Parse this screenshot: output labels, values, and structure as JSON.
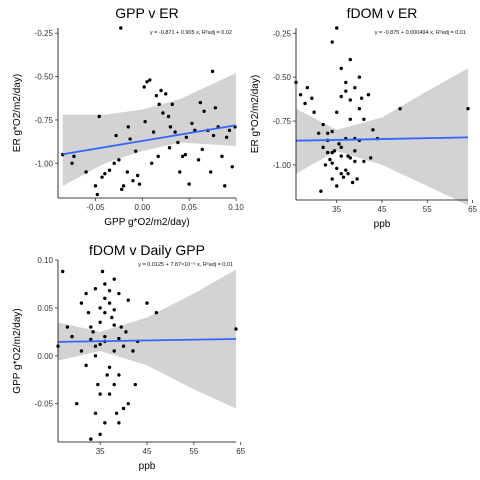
{
  "chart_data": [
    {
      "type": "scatter",
      "title": "GPP v ER",
      "xlabel": "GPP g*O2/m2/day)",
      "ylabel": "ER g*O2/m2/day)",
      "equation": "y = -0.871 + 0.905 x,  R²adj = 0.02",
      "xlim": [
        -0.09,
        0.1
      ],
      "ylim": [
        -1.2,
        -0.22
      ],
      "xticks": [
        -0.05,
        0.0,
        0.05,
        0.1
      ],
      "xtick_labels": [
        "-0.05",
        "0.00",
        "0.05",
        "0.10"
      ],
      "yticks": [
        -0.25,
        -0.5,
        -0.75,
        -1.0
      ],
      "ytick_labels": [
        "-0.25",
        "-0.50",
        "-0.75",
        "-1.00"
      ],
      "fit": {
        "intercept": -0.871,
        "slope": 0.905,
        "x_range": [
          -0.085,
          0.1
        ]
      },
      "band": {
        "x": [
          -0.085,
          -0.04,
          0.0,
          0.04,
          0.1
        ],
        "lower": [
          -1.13,
          -1.0,
          -0.93,
          -0.88,
          -0.9
        ],
        "upper": [
          -0.72,
          -0.72,
          -0.69,
          -0.63,
          -0.48
        ]
      },
      "points": [
        [
          -0.085,
          -0.95
        ],
        [
          -0.075,
          -1.0
        ],
        [
          -0.073,
          -0.96
        ],
        [
          -0.06,
          -1.05
        ],
        [
          -0.05,
          -1.13
        ],
        [
          -0.048,
          -1.18
        ],
        [
          -0.046,
          -0.73
        ],
        [
          -0.043,
          -1.08
        ],
        [
          -0.04,
          -1.06
        ],
        [
          -0.035,
          -1.04
        ],
        [
          -0.03,
          -1.0
        ],
        [
          -0.028,
          -0.84
        ],
        [
          -0.025,
          -0.98
        ],
        [
          -0.022,
          -1.15
        ],
        [
          -0.02,
          -1.13
        ],
        [
          -0.016,
          -1.05
        ],
        [
          -0.013,
          -0.86
        ],
        [
          -0.01,
          -1.1
        ],
        [
          -0.005,
          -1.07
        ],
        [
          -0.003,
          -1.12
        ],
        [
          -0.023,
          -0.22
        ],
        [
          -0.015,
          -0.79
        ],
        [
          0.002,
          -0.56
        ],
        [
          0.005,
          -0.53
        ],
        [
          0.008,
          -0.52
        ],
        [
          0.003,
          -0.76
        ],
        [
          0.012,
          -0.82
        ],
        [
          0.015,
          -0.61
        ],
        [
          0.018,
          -0.66
        ],
        [
          0.02,
          -0.58
        ],
        [
          0.022,
          -0.71
        ],
        [
          0.025,
          -0.6
        ],
        [
          0.028,
          -0.73
        ],
        [
          0.03,
          -0.79
        ],
        [
          0.032,
          -0.66
        ],
        [
          0.035,
          -0.82
        ],
        [
          0.038,
          -0.88
        ],
        [
          0.04,
          -1.05
        ],
        [
          0.043,
          -0.96
        ],
        [
          0.046,
          -0.95
        ],
        [
          0.05,
          -1.12
        ],
        [
          0.053,
          -0.77
        ],
        [
          0.056,
          -0.81
        ],
        [
          0.06,
          -0.98
        ],
        [
          0.062,
          -0.65
        ],
        [
          0.066,
          -0.7
        ],
        [
          0.07,
          -0.81
        ],
        [
          0.073,
          -1.05
        ],
        [
          0.076,
          -0.84
        ],
        [
          0.078,
          -0.68
        ],
        [
          0.081,
          -0.79
        ],
        [
          0.085,
          -0.96
        ],
        [
          0.088,
          -1.13
        ],
        [
          0.09,
          -0.85
        ],
        [
          0.093,
          -0.81
        ],
        [
          0.096,
          -1.02
        ],
        [
          0.099,
          -0.79
        ],
        [
          0.075,
          -0.47
        ],
        [
          0.029,
          -0.91
        ],
        [
          0.01,
          -1.0
        ],
        [
          -0.007,
          -0.93
        ],
        [
          0.017,
          -0.96
        ],
        [
          0.047,
          -0.85
        ],
        [
          0.064,
          -0.92
        ]
      ]
    },
    {
      "type": "scatter",
      "title": "fDOM  v ER",
      "xlabel": "ppb",
      "ylabel": "ER g*O2/m2/day)",
      "equation": "y = -0.875 + 0.000494 x,  R²adj = 0.01",
      "xlim": [
        26,
        64
      ],
      "ylim": [
        -1.2,
        -0.22
      ],
      "xticks": [
        35,
        45,
        55,
        65
      ],
      "xtick_labels": [
        "35",
        "45",
        "55",
        "65"
      ],
      "yticks": [
        -0.25,
        -0.5,
        -0.75,
        -1.0
      ],
      "ytick_labels": [
        "-0.25",
        "-0.50",
        "-0.75",
        "-1.00"
      ],
      "fit": {
        "intercept": -0.875,
        "slope": 0.000494,
        "x_range": [
          26,
          64
        ]
      },
      "band": {
        "x": [
          26,
          35,
          45,
          55,
          64
        ],
        "lower": [
          -1.05,
          -0.92,
          -1.0,
          -1.12,
          -1.23
        ],
        "upper": [
          -0.68,
          -0.8,
          -0.73,
          -0.58,
          -0.45
        ]
      },
      "points": [
        [
          26,
          -0.53
        ],
        [
          27,
          -0.6
        ],
        [
          28,
          -0.65
        ],
        [
          28.5,
          -0.56
        ],
        [
          29.5,
          -0.62
        ],
        [
          30,
          -0.7
        ],
        [
          31,
          -0.82
        ],
        [
          31.5,
          -1.15
        ],
        [
          32,
          -0.9
        ],
        [
          32.5,
          -1.0
        ],
        [
          33,
          -0.93
        ],
        [
          33,
          -0.82
        ],
        [
          33.5,
          -0.97
        ],
        [
          34,
          -0.99
        ],
        [
          34,
          -1.08
        ],
        [
          34.5,
          -0.92
        ],
        [
          35,
          -1.02
        ],
        [
          35,
          -1.12
        ],
        [
          35.5,
          -0.88
        ],
        [
          36,
          -1.05
        ],
        [
          36,
          -0.95
        ],
        [
          36.5,
          -1.07
        ],
        [
          37,
          -1.03
        ],
        [
          37,
          -0.85
        ],
        [
          37.5,
          -1.05
        ],
        [
          38,
          -0.96
        ],
        [
          38,
          -0.74
        ],
        [
          38.5,
          -1.1
        ],
        [
          39,
          -0.98
        ],
        [
          39,
          -0.92
        ],
        [
          35,
          -0.22
        ],
        [
          34,
          -0.3
        ],
        [
          36,
          -0.45
        ],
        [
          37,
          -0.53
        ],
        [
          38,
          -0.4
        ],
        [
          39,
          -0.56
        ],
        [
          40,
          -0.5
        ],
        [
          40.5,
          -0.62
        ],
        [
          41,
          -0.74
        ],
        [
          42,
          -0.6
        ],
        [
          42.5,
          -0.96
        ],
        [
          40,
          -0.86
        ],
        [
          41,
          -0.98
        ],
        [
          39.5,
          -1.08
        ],
        [
          36,
          -0.61
        ],
        [
          35,
          -0.7
        ],
        [
          34,
          -0.81
        ],
        [
          33,
          -0.86
        ],
        [
          32,
          -0.77
        ],
        [
          38,
          -0.63
        ],
        [
          37,
          -0.58
        ],
        [
          40,
          -0.68
        ],
        [
          49,
          -0.68
        ],
        [
          64,
          -0.68
        ],
        [
          43,
          -0.8
        ],
        [
          44,
          -0.85
        ],
        [
          36,
          -0.9
        ],
        [
          39,
          -0.85
        ],
        [
          34,
          -0.93
        ],
        [
          37.5,
          -0.95
        ]
      ]
    },
    {
      "type": "scatter",
      "title": "fDOM  v Daily GPP",
      "xlabel": "ppb",
      "ylabel": "GPP g*O2/m2/day)",
      "equation": "y = 0.0125 + 7.87×10⁻⁵ x,  R²adj = 0.01",
      "xlim": [
        26,
        64
      ],
      "ylim": [
        -0.09,
        0.1
      ],
      "xticks": [
        35,
        45,
        55,
        65
      ],
      "xtick_labels": [
        "35",
        "45",
        "55",
        "65"
      ],
      "yticks": [
        -0.05,
        0.0,
        0.05,
        0.1
      ],
      "ytick_labels": [
        "-0.05",
        "0.00",
        "0.05",
        "0.10"
      ],
      "fit": {
        "intercept": 0.0125,
        "slope": 7.87e-05,
        "x_range": [
          26,
          64
        ]
      },
      "band": {
        "x": [
          26,
          35,
          45,
          55,
          64
        ],
        "lower": [
          -0.005,
          0.005,
          -0.01,
          -0.035,
          -0.055
        ],
        "upper": [
          0.035,
          0.025,
          0.04,
          0.065,
          0.09
        ]
      },
      "points": [
        [
          26,
          0.01
        ],
        [
          27,
          0.088
        ],
        [
          28,
          0.03
        ],
        [
          29,
          0.02
        ],
        [
          30,
          -0.05
        ],
        [
          31,
          0.005
        ],
        [
          31,
          0.055
        ],
        [
          32,
          0.065
        ],
        [
          32.5,
          0.045
        ],
        [
          33,
          0.03
        ],
        [
          33,
          -0.087
        ],
        [
          33.5,
          0.025
        ],
        [
          34,
          0.07
        ],
        [
          34,
          0.01
        ],
        [
          34.5,
          -0.03
        ],
        [
          35,
          0.05
        ],
        [
          35,
          -0.082
        ],
        [
          35.5,
          0.088
        ],
        [
          36,
          0.075
        ],
        [
          36,
          0.015
        ],
        [
          36.5,
          -0.02
        ],
        [
          37,
          0.055
        ],
        [
          37,
          -0.04
        ],
        [
          37.5,
          0.04
        ],
        [
          38,
          0.08
        ],
        [
          38,
          0.005
        ],
        [
          38.5,
          -0.06
        ],
        [
          39,
          0.065
        ],
        [
          39,
          -0.02
        ],
        [
          39.5,
          0.03
        ],
        [
          34,
          -0.06
        ],
        [
          35,
          -0.04
        ],
        [
          36,
          -0.07
        ],
        [
          37,
          0.068
        ],
        [
          36,
          0.045
        ],
        [
          35,
          0.035
        ],
        [
          34,
          0.0
        ],
        [
          38,
          0.048
        ],
        [
          39,
          0.018
        ],
        [
          40,
          0.01
        ],
        [
          40.5,
          0.025
        ],
        [
          41,
          -0.05
        ],
        [
          42,
          0.005
        ],
        [
          42.5,
          -0.03
        ],
        [
          40,
          -0.055
        ],
        [
          41,
          0.058
        ],
        [
          39,
          -0.07
        ],
        [
          38,
          -0.03
        ],
        [
          37,
          -0.012
        ],
        [
          36,
          0.02
        ],
        [
          35,
          0.012
        ],
        [
          33,
          0.017
        ],
        [
          32,
          -0.01
        ],
        [
          45,
          0.055
        ],
        [
          47,
          0.045
        ],
        [
          64,
          0.028
        ],
        [
          43,
          0.015
        ],
        [
          38,
          0.032
        ],
        [
          36,
          0.06
        ]
      ]
    }
  ]
}
